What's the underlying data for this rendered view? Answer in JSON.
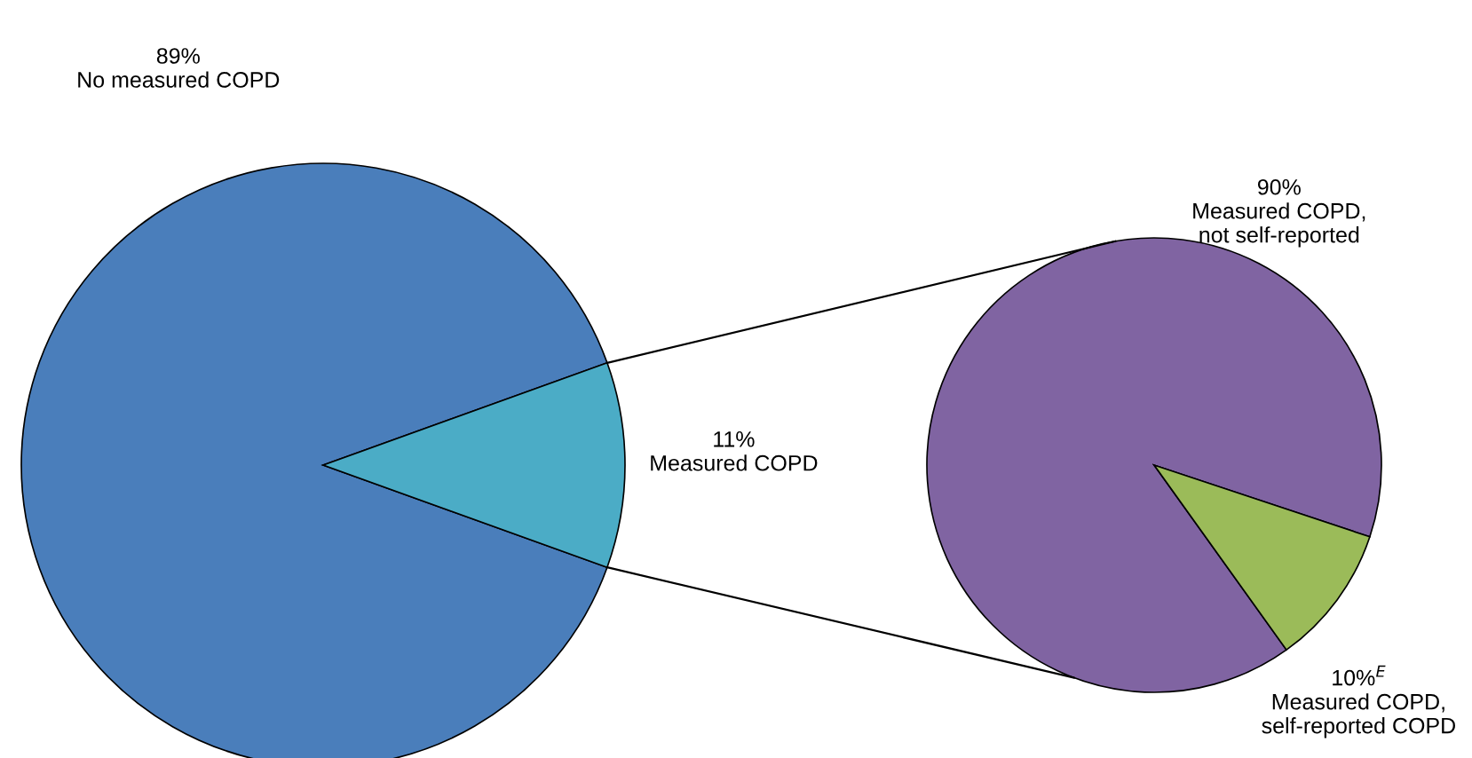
{
  "chart_data": [
    {
      "type": "pie",
      "categories": [
        "No measured COPD",
        "Measured COPD"
      ],
      "values": [
        89,
        11
      ],
      "value_labels": [
        "89%",
        "11%"
      ],
      "colors": [
        "#4a7ebb",
        "#4bacc6"
      ]
    },
    {
      "type": "pie",
      "categories": [
        "Measured COPD,\nnot self-reported",
        "Measured COPD,\nself-reported COPD"
      ],
      "values": [
        90,
        10
      ],
      "value_labels": [
        "90%",
        "10%$^{E}$"
      ],
      "colors": [
        "#8064a2",
        "#9bbb59"
      ]
    }
  ]
}
